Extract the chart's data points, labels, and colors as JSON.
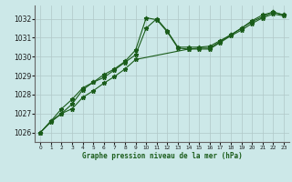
{
  "title": "Graphe pression niveau de la mer (hPa)",
  "background_color": "#cce8e8",
  "grid_color": "#b0c8c8",
  "line_color": "#1a5c1a",
  "xlim": [
    -0.5,
    23.5
  ],
  "ylim": [
    1025.5,
    1032.7
  ],
  "yticks": [
    1026,
    1027,
    1028,
    1029,
    1030,
    1031,
    1032
  ],
  "xticks": [
    0,
    1,
    2,
    3,
    4,
    5,
    6,
    7,
    8,
    9,
    10,
    11,
    12,
    13,
    14,
    15,
    16,
    17,
    18,
    19,
    20,
    21,
    22,
    23
  ],
  "series": [
    {
      "x": [
        0,
        1,
        2,
        3,
        4,
        5,
        6,
        7,
        8,
        9,
        10,
        11,
        12,
        13,
        14,
        15,
        16,
        17,
        18,
        19,
        20,
        21,
        22,
        23
      ],
      "y": [
        1026.0,
        1026.6,
        1027.0,
        1027.5,
        1028.25,
        1028.65,
        1029.05,
        1029.35,
        1029.75,
        1030.35,
        1032.05,
        1031.95,
        1031.3,
        1030.45,
        1030.4,
        1030.45,
        1030.45,
        1030.8,
        1031.15,
        1031.5,
        1031.85,
        1032.1,
        1032.35,
        1032.2
      ]
    },
    {
      "x": [
        0,
        1,
        2,
        3,
        4,
        5,
        6,
        7,
        8,
        9,
        10,
        11,
        12,
        13,
        14,
        15,
        16,
        17,
        18,
        19,
        20,
        21,
        22,
        23
      ],
      "y": [
        1026.0,
        1026.6,
        1027.25,
        1027.75,
        1028.35,
        1028.65,
        1028.9,
        1029.3,
        1029.7,
        1030.1,
        1031.5,
        1032.0,
        1031.35,
        1030.5,
        1030.5,
        1030.5,
        1030.55,
        1030.85,
        1031.15,
        1031.5,
        1031.9,
        1032.2,
        1032.35,
        1032.2
      ]
    },
    {
      "x": [
        0,
        1,
        2,
        3,
        4,
        5,
        6,
        7,
        8,
        9,
        14,
        15,
        16,
        17,
        18,
        19,
        20,
        21,
        22,
        23
      ],
      "y": [
        1026.0,
        1026.55,
        1027.0,
        1027.25,
        1027.85,
        1028.2,
        1028.6,
        1028.95,
        1029.35,
        1029.85,
        1030.4,
        1030.4,
        1030.4,
        1030.75,
        1031.1,
        1031.4,
        1031.75,
        1032.05,
        1032.25,
        1032.15
      ]
    }
  ]
}
